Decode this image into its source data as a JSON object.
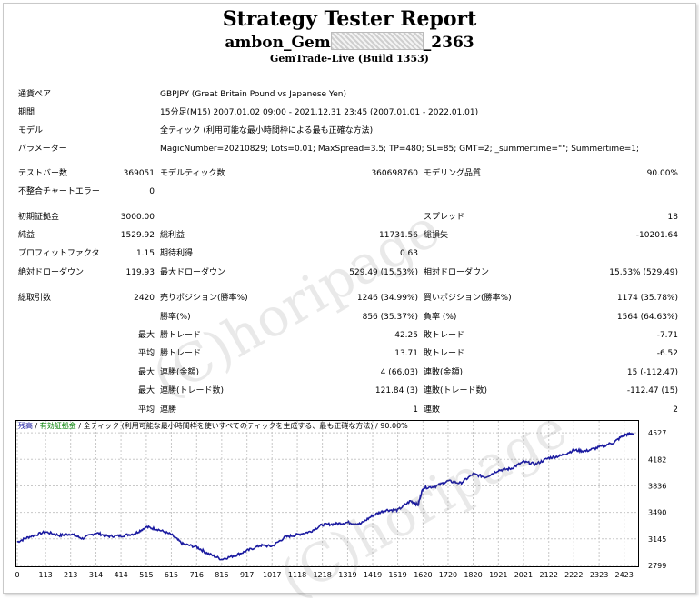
{
  "header": {
    "title": "Strategy Tester Report",
    "account_prefix": "ambon_Gem",
    "account_suffix": "_2363",
    "server": "GemTrade-Live (Build 1353)"
  },
  "info": {
    "symbol_label": "通貨ペア",
    "symbol_value": "GBPJPY (Great Britain Pound vs Japanese Yen)",
    "period_label": "期間",
    "period_value": "15分足(M15) 2007.01.02 09:00 - 2021.12.31 23:45 (2007.01.01 - 2022.01.01)",
    "model_label": "モデル",
    "model_value": "全ティック (利用可能な最小時間枠による最も正確な方法)",
    "params_label": "パラメーター",
    "params_value": "MagicNumber=20210829; Lots=0.01; MaxSpread=3.5; TP=480; SL=85; GMT=2; _summertime=\"\"; Summertime=1;"
  },
  "stats": {
    "bars_label": "テストバー数",
    "bars_value": "369051",
    "ticks_label": "モデルティック数",
    "ticks_value": "360698760",
    "quality_label": "モデリング品質",
    "quality_value": "90.00%",
    "mismatch_label": "不整合チャートエラー",
    "mismatch_value": "0",
    "deposit_label": "初期証拠金",
    "deposit_value": "3000.00",
    "spread_label": "スプレッド",
    "spread_value": "18",
    "netprofit_label": "純益",
    "netprofit_value": "1529.92",
    "grossprofit_label": "総利益",
    "grossprofit_value": "11731.56",
    "grossloss_label": "総損失",
    "grossloss_value": "-10201.64",
    "pf_label": "プロフィットファクタ",
    "pf_value": "1.15",
    "payoff_label": "期待利得",
    "payoff_value": "0.63",
    "absdd_label": "絶対ドローダウン",
    "absdd_value": "119.93",
    "maxdd_label": "最大ドローダウン",
    "maxdd_value": "529.49 (15.53%)",
    "reldd_label": "相対ドローダウン",
    "reldd_value": "15.53% (529.49)",
    "trades_label": "総取引数",
    "trades_value": "2420",
    "short_label": "売りポジション(勝率%)",
    "short_value": "1246 (34.99%)",
    "long_label": "買いポジション(勝率%)",
    "long_value": "1174 (35.78%)",
    "win_label": "勝率(%)",
    "win_value": "856 (35.37%)",
    "loss_label": "負率 (%)",
    "loss_value": "1564 (64.63%)",
    "max_label": "最大",
    "avg_label": "平均",
    "profittrade_label": "勝トレード",
    "largest_profit": "42.25",
    "avg_profit": "13.71",
    "losstrade_label": "敗トレード",
    "largest_loss": "-7.71",
    "avg_loss": "-6.52",
    "consec_wins_money_label": "連勝(金額)",
    "consec_wins_money": "4 (66.03)",
    "consec_losses_money_label": "連敗(金額)",
    "consec_losses_money": "15 (-112.47)",
    "consec_profit_label": "連勝(トレード数)",
    "consec_profit": "121.84 (3)",
    "consec_loss_label": "連敗(トレード数)",
    "consec_loss": "-112.47 (15)",
    "avg_wins_label": "連勝",
    "avg_wins": "1",
    "avg_losses_label": "連敗",
    "avg_losses": "2"
  },
  "watermark": "(C)horipage",
  "chart_data": {
    "type": "line",
    "legend_balance": "残高",
    "legend_model": "有効証拠金",
    "legend_text": " / 全ティック (利用可能な最小時間枠を使いすべてのティックを生成する、最も正確な方法) / 90.00%",
    "line_color": "#1a1aa0",
    "x_ticks": [
      "0",
      "113",
      "213",
      "314",
      "414",
      "515",
      "615",
      "716",
      "816",
      "917",
      "1017",
      "1118",
      "1218",
      "1319",
      "1419",
      "1519",
      "1620",
      "1720",
      "1820",
      "1921",
      "2021",
      "2122",
      "2222",
      "2323",
      "2423"
    ],
    "y_ticks": [
      "4527",
      "4182",
      "3836",
      "3490",
      "3145",
      "2799"
    ],
    "ylim": [
      2799,
      4600
    ],
    "xlim": [
      0,
      2475
    ],
    "x": [
      0,
      50,
      113,
      170,
      213,
      260,
      314,
      360,
      414,
      470,
      515,
      560,
      615,
      660,
      716,
      760,
      816,
      870,
      917,
      970,
      1017,
      1070,
      1118,
      1170,
      1218,
      1270,
      1319,
      1370,
      1419,
      1470,
      1519,
      1570,
      1600,
      1620,
      1670,
      1720,
      1770,
      1820,
      1870,
      1921,
      1970,
      2021,
      2070,
      2122,
      2170,
      2222,
      2270,
      2323,
      2380,
      2423,
      2460
    ],
    "y": [
      3105,
      3175,
      3235,
      3190,
      3210,
      3150,
      3225,
      3180,
      3185,
      3215,
      3300,
      3270,
      3200,
      3080,
      3040,
      2955,
      2880,
      2930,
      2990,
      3060,
      3050,
      3170,
      3200,
      3240,
      3330,
      3340,
      3360,
      3340,
      3450,
      3520,
      3520,
      3640,
      3590,
      3810,
      3830,
      3900,
      3870,
      3990,
      3950,
      4040,
      4060,
      4150,
      4120,
      4200,
      4230,
      4300,
      4290,
      4340,
      4400,
      4500,
      4520
    ]
  }
}
